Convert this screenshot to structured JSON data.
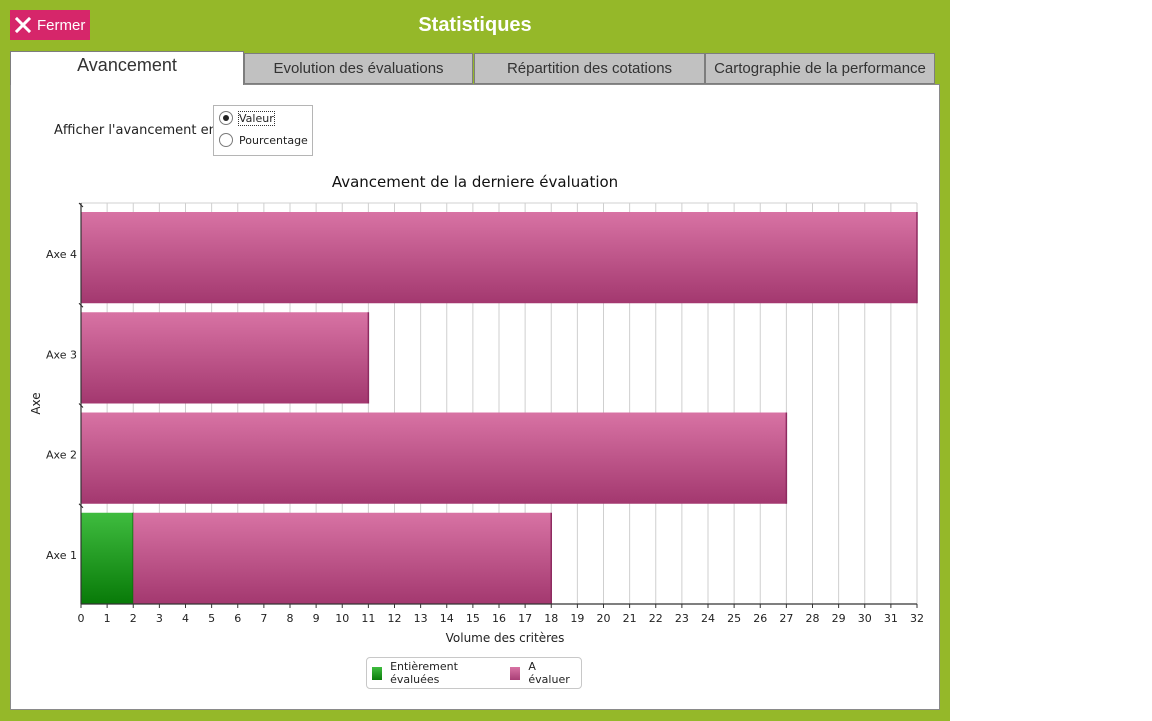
{
  "header": {
    "close_label": "Fermer",
    "title": "Statistiques"
  },
  "tabs": [
    {
      "label": "Avancement",
      "active": true
    },
    {
      "label": "Evolution des évaluations",
      "active": false
    },
    {
      "label": "Répartition des cotations",
      "active": false
    },
    {
      "label": "Cartographie de la performance",
      "active": false
    }
  ],
  "options": {
    "label": "Afficher l'avancement en",
    "choices": [
      "Valeur",
      "Pourcentage"
    ],
    "selected": "Valeur"
  },
  "colors": {
    "accent": "#95b829",
    "close": "#d6266a",
    "evaluated": "#1f9a1f",
    "pending": "#c25a8e"
  },
  "chart_data": {
    "type": "bar",
    "orientation": "horizontal",
    "stacked": true,
    "title": "Avancement de la derniere évaluation",
    "xlabel": "Volume des critères",
    "ylabel": "Axe",
    "categories": [
      "Axe 1",
      "Axe 2",
      "Axe 3",
      "Axe 4"
    ],
    "series": [
      {
        "name": "Entièrement évaluées",
        "values": [
          2,
          0,
          0,
          0
        ]
      },
      {
        "name": "A évaluer",
        "values": [
          16,
          27,
          11,
          32
        ]
      }
    ],
    "xlim": [
      0,
      32
    ],
    "xticks": [
      "0",
      "1",
      "2",
      "3",
      "4",
      "5",
      "6",
      "7",
      "8",
      "9",
      "10",
      "11",
      "12",
      "13",
      "14",
      "15",
      "16",
      "17",
      "18",
      "19",
      "20",
      "21",
      "22",
      "23",
      "24",
      "25",
      "26",
      "27",
      "28",
      "29",
      "30",
      "31",
      "32"
    ],
    "grid": true,
    "legend": "bottom"
  }
}
